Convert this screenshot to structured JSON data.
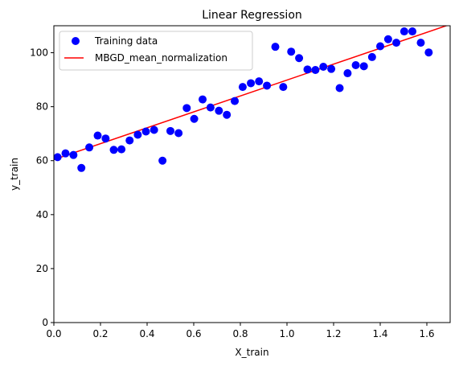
{
  "chart_data": {
    "type": "scatter",
    "title": "Linear Regression",
    "xlabel": "X_train",
    "ylabel": "y_train",
    "xlim": [
      0,
      1.7
    ],
    "ylim": [
      0,
      110
    ],
    "grid": false,
    "legend_position": "top-left",
    "x_ticks": [
      "0.0",
      "0.2",
      "0.4",
      "0.6",
      "0.8",
      "1.0",
      "1.2",
      "1.4",
      "1.6"
    ],
    "y_ticks": [
      "0",
      "20",
      "40",
      "60",
      "80",
      "100"
    ],
    "series": [
      {
        "name": "Training data",
        "kind": "scatter",
        "color": "#0000ff",
        "points": [
          [
            0.016,
            61.3
          ],
          [
            0.05,
            62.7
          ],
          [
            0.084,
            62.1
          ],
          [
            0.118,
            57.3
          ],
          [
            0.152,
            64.9
          ],
          [
            0.188,
            69.3
          ],
          [
            0.222,
            68.2
          ],
          [
            0.257,
            64.0
          ],
          [
            0.29,
            64.2
          ],
          [
            0.325,
            67.5
          ],
          [
            0.36,
            69.6
          ],
          [
            0.395,
            70.8
          ],
          [
            0.43,
            71.4
          ],
          [
            0.466,
            60.0
          ],
          [
            0.5,
            71.0
          ],
          [
            0.535,
            70.2
          ],
          [
            0.57,
            79.5
          ],
          [
            0.602,
            75.5
          ],
          [
            0.638,
            82.7
          ],
          [
            0.672,
            79.7
          ],
          [
            0.708,
            78.5
          ],
          [
            0.742,
            77.0
          ],
          [
            0.776,
            82.1
          ],
          [
            0.81,
            87.3
          ],
          [
            0.845,
            88.7
          ],
          [
            0.88,
            89.4
          ],
          [
            0.914,
            87.8
          ],
          [
            0.95,
            102.2
          ],
          [
            0.984,
            87.3
          ],
          [
            1.018,
            100.4
          ],
          [
            1.052,
            98.0
          ],
          [
            1.088,
            93.8
          ],
          [
            1.122,
            93.6
          ],
          [
            1.156,
            94.8
          ],
          [
            1.19,
            94.0
          ],
          [
            1.226,
            86.9
          ],
          [
            1.26,
            92.4
          ],
          [
            1.295,
            95.4
          ],
          [
            1.33,
            95.0
          ],
          [
            1.365,
            98.4
          ],
          [
            1.4,
            102.4
          ],
          [
            1.434,
            105.0
          ],
          [
            1.469,
            103.7
          ],
          [
            1.503,
            107.9
          ],
          [
            1.538,
            107.9
          ],
          [
            1.574,
            103.7
          ],
          [
            1.608,
            100.1
          ]
        ]
      },
      {
        "name": "MBGD_mean_normalization",
        "kind": "line",
        "color": "#ff0000",
        "x": [
          0.0,
          1.7
        ],
        "y": [
          60.4,
          110.5
        ]
      }
    ]
  }
}
